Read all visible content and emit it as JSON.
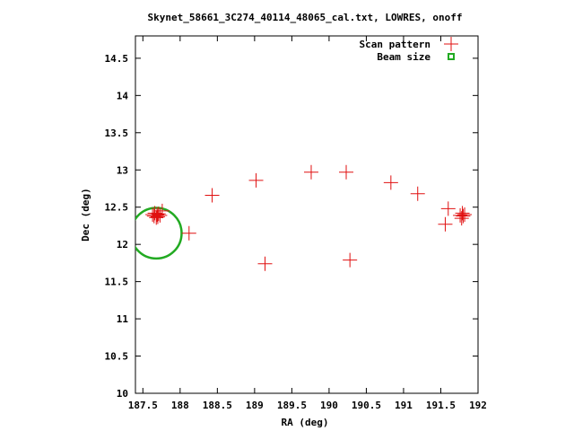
{
  "colors": {
    "scan": "#e01010",
    "beam": "#22aa22",
    "axis": "#000000",
    "background": "#ffffff"
  },
  "chart_data": {
    "type": "scatter",
    "title": "Skynet_58661_3C274_40114_48065_cal.txt, LOWRES, onoff",
    "xlabel": "RA (deg)",
    "ylabel": "Dec (deg)",
    "xlim": [
      187.4,
      192
    ],
    "ylim": [
      10,
      14.8
    ],
    "xticks": [
      "187.5",
      "188",
      "188.5",
      "189",
      "189.5",
      "190",
      "190.5",
      "191",
      "191.5",
      "192"
    ],
    "yticks": [
      "10",
      "10.5",
      "11",
      "11.5",
      "12",
      "12.5",
      "13",
      "13.5",
      "14",
      "14.5"
    ],
    "grid": false,
    "legend_position": "top-right",
    "legend": [
      "Scan pattern",
      "Beam size"
    ],
    "series": [
      {
        "name": "Scan pattern",
        "marker": "plus",
        "points": [
          [
            187.63,
            12.4
          ],
          [
            187.65,
            12.38
          ],
          [
            187.66,
            12.42
          ],
          [
            187.68,
            12.36
          ],
          [
            187.69,
            12.4
          ],
          [
            187.7,
            12.37
          ],
          [
            187.71,
            12.41
          ],
          [
            187.73,
            12.39
          ],
          [
            187.76,
            12.45
          ],
          [
            188.12,
            12.15
          ],
          [
            188.43,
            12.66
          ],
          [
            189.02,
            12.86
          ],
          [
            189.14,
            11.74
          ],
          [
            189.76,
            12.97
          ],
          [
            190.23,
            12.97
          ],
          [
            190.28,
            11.79
          ],
          [
            190.83,
            12.83
          ],
          [
            191.19,
            12.68
          ],
          [
            191.56,
            12.27
          ],
          [
            191.6,
            12.48
          ],
          [
            191.76,
            12.39
          ],
          [
            191.78,
            12.35
          ],
          [
            191.79,
            12.42
          ],
          [
            191.8,
            12.38
          ],
          [
            191.82,
            12.4
          ]
        ]
      },
      {
        "name": "Beam size",
        "marker": "circle",
        "center": [
          187.68,
          12.15
        ],
        "radius_deg": 0.34
      }
    ]
  }
}
